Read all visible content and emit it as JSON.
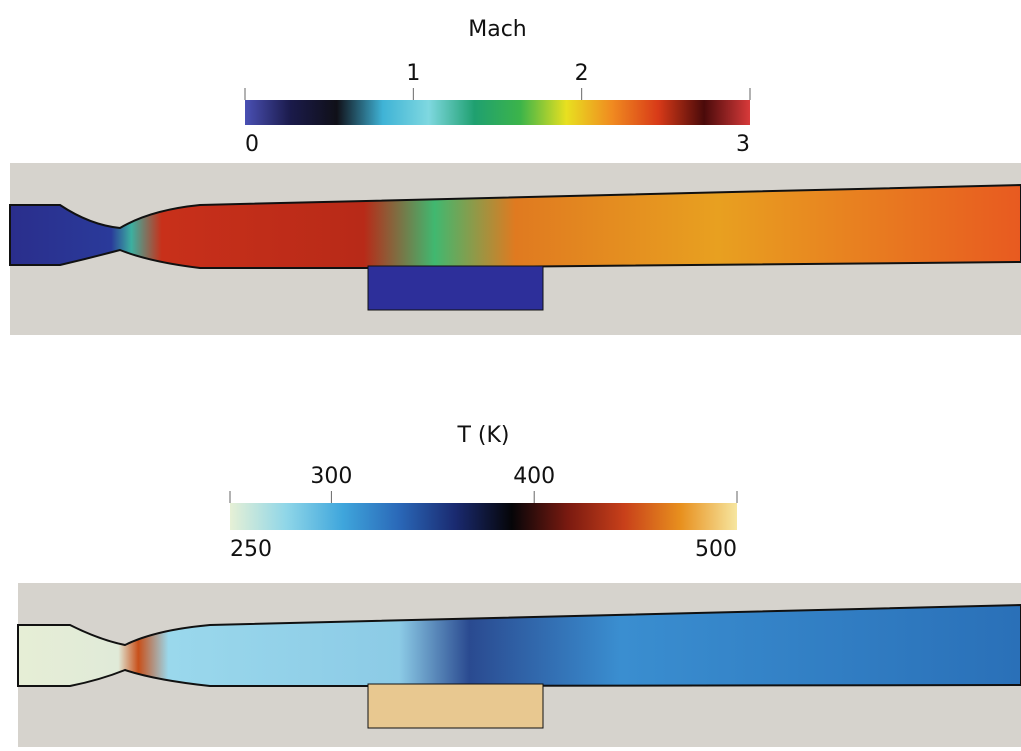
{
  "panels": [
    {
      "title": "Mach",
      "range": [
        0,
        3
      ],
      "top_ticks": [
        1,
        2
      ],
      "bottom_ticks": [
        0,
        3
      ],
      "colormap": [
        "#4a50b4",
        "#1a1a4a",
        "#101018",
        "#3fb3d6",
        "#7fd8e0",
        "#1fa070",
        "#3cb44a",
        "#e8e020",
        "#f08a20",
        "#d83a18",
        "#4a0a0a",
        "#d83a3a"
      ]
    },
    {
      "title": "T (K)",
      "range": [
        250,
        500
      ],
      "top_ticks": [
        300,
        400
      ],
      "bottom_ticks": [
        250,
        500
      ],
      "colormap": [
        "#e6f0d6",
        "#8fd6e8",
        "#3fa6dc",
        "#2a68b8",
        "#1a2a70",
        "#050508",
        "#7a1a10",
        "#c8401a",
        "#e8901e",
        "#f6e6a0"
      ]
    }
  ]
}
